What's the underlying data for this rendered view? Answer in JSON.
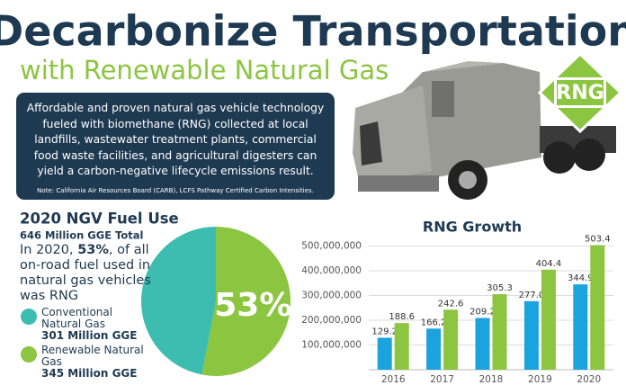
{
  "header": {
    "title": "Decarbonize Transportation",
    "subtitle": "with Renewable Natural Gas",
    "badge": "RNG"
  },
  "description": {
    "lines": [
      "Affordable and proven natural gas vehicle technology",
      "fueled with biomethane (RNG) collected at local",
      "landfills, wastewater treatment plants, commercial",
      "food waste facilities, and agricultural digesters can",
      "yield a carbon-negative lifecycle emissions result."
    ],
    "note": "Note: California Air Resources Board (CARB), LCFS Pathway Certified Carbon Intensities."
  },
  "chart_data": [
    {
      "type": "pie",
      "title": "2020 NGV Fuel Use",
      "subtitle": "646 Million GGE Total",
      "annotation": [
        "In 2020, ",
        "53%",
        ", of all on-road fuel used in natural gas vehicles was RNG"
      ],
      "categories": [
        "Conventional Natural Gas",
        "Renewable Natural Gas"
      ],
      "details": [
        "301 Million GGE",
        "345 Million GGE"
      ],
      "values": [
        47,
        53
      ],
      "value_labels": [
        null,
        "53%"
      ],
      "colors": [
        "#3cbdb0",
        "#8cc540"
      ]
    },
    {
      "type": "bar",
      "title": "RNG Growth",
      "categories": [
        "2016",
        "2017",
        "2018",
        "2019",
        "2020"
      ],
      "series": [
        {
          "color": "#1ba3dd",
          "values": [
            129200000,
            166200000,
            209200000,
            277000000,
            344900000
          ],
          "value_labels": [
            "129.2",
            "166.2",
            "209.2",
            "277.0",
            "344.9"
          ]
        },
        {
          "color": "#8cc540",
          "values": [
            188600000,
            242600000,
            305300000,
            404400000,
            503400000
          ],
          "value_labels": [
            "188.6",
            "242.6",
            "305.3",
            "404.4",
            "503.4"
          ]
        }
      ],
      "ylim": [
        0,
        520000000
      ],
      "yticks": [
        {
          "value": 100000000,
          "label": "100,000,000"
        },
        {
          "value": 200000000,
          "label": "200,000,000"
        },
        {
          "value": 300000000,
          "label": "300,000,000"
        },
        {
          "value": 400000000,
          "label": "400,000,000"
        },
        {
          "value": 500000000,
          "label": "500,000,000"
        }
      ],
      "grid": true
    }
  ]
}
